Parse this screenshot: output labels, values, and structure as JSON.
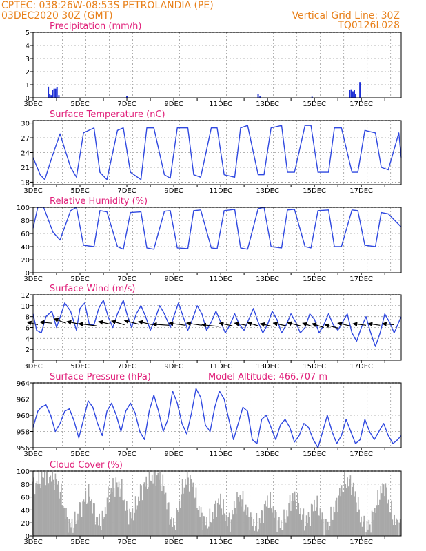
{
  "header": {
    "line1_left": "CPTEC:   038:26W-08:53S   PETROLANDIA (PE)",
    "line2_left": "03DEC2020 30Z (GMT)",
    "line1_right": "Vertical Grid Line: 30Z",
    "line2_right": "TQ0126L028"
  },
  "chart_data": [
    {
      "type": "bar",
      "title": "Precipitation (mm/h)",
      "ylim": [
        0,
        5
      ],
      "yticks": [
        0,
        1,
        2,
        3,
        4,
        5
      ],
      "xticks": [
        "3DEC",
        "5DEC",
        "7DEC",
        "9DEC",
        "11DEC",
        "13DEC",
        "15DEC",
        "17DEC"
      ],
      "xlim_days": [
        3,
        18.7
      ],
      "bar_color": "#1d2fd6",
      "bars": [
        {
          "x": 3.65,
          "y": 0.85
        },
        {
          "x": 3.71,
          "y": 0.3
        },
        {
          "x": 3.77,
          "y": 0.2
        },
        {
          "x": 3.83,
          "y": 0.6
        },
        {
          "x": 3.9,
          "y": 0.7
        },
        {
          "x": 3.96,
          "y": 0.7
        },
        {
          "x": 4.02,
          "y": 0.8
        },
        {
          "x": 4.1,
          "y": 0.2
        },
        {
          "x": 7.0,
          "y": 0.12
        },
        {
          "x": 12.6,
          "y": 0.28
        },
        {
          "x": 12.68,
          "y": 0.1
        },
        {
          "x": 14.9,
          "y": 0.08
        },
        {
          "x": 16.5,
          "y": 0.6
        },
        {
          "x": 16.57,
          "y": 0.65
        },
        {
          "x": 16.64,
          "y": 0.5
        },
        {
          "x": 16.7,
          "y": 0.6
        },
        {
          "x": 16.76,
          "y": 0.3
        },
        {
          "x": 16.94,
          "y": 1.2
        }
      ]
    },
    {
      "type": "line",
      "title": "Surface Temperature (nC)",
      "ylim": [
        17.5,
        30.5
      ],
      "yticks": [
        18,
        21,
        24,
        27,
        30
      ],
      "xticks": [
        "3DEC",
        "5DEC",
        "7DEC",
        "9DEC",
        "11DEC",
        "13DEC",
        "15DEC",
        "17DEC"
      ],
      "line_color": "#2f48e0",
      "series": [
        {
          "x": [
            3.0,
            3.3,
            3.5,
            3.8,
            4.15,
            4.6,
            4.85,
            5.15,
            5.6,
            5.85,
            6.15,
            6.6,
            6.85,
            7.15,
            7.6,
            7.85,
            8.15,
            8.6,
            8.85,
            9.15,
            9.6,
            9.85,
            10.15,
            10.6,
            10.85,
            11.15,
            11.6,
            11.85,
            12.15,
            12.6,
            12.85,
            13.15,
            13.6,
            13.85,
            14.15,
            14.6,
            14.85,
            15.15,
            15.6,
            15.85,
            16.15,
            16.6,
            16.85,
            17.15,
            17.6,
            17.85,
            18.15,
            18.6,
            18.7
          ],
          "y": [
            23.0,
            19.5,
            18.5,
            23.0,
            27.8,
            21.0,
            19.0,
            28.0,
            29.0,
            20.0,
            18.5,
            28.5,
            29.0,
            20.0,
            18.5,
            29.0,
            29.0,
            19.5,
            18.8,
            29.0,
            29.0,
            19.5,
            19.0,
            29.0,
            29.0,
            19.5,
            19.0,
            29.0,
            29.5,
            19.5,
            19.5,
            29.0,
            29.5,
            20.0,
            20.0,
            29.5,
            29.5,
            20.0,
            20.0,
            29.0,
            29.0,
            20.0,
            20.0,
            28.5,
            28.0,
            21.0,
            20.5,
            28.0,
            23.0
          ]
        }
      ]
    },
    {
      "type": "line",
      "title": "Relative Humidity (%)",
      "ylim": [
        0,
        100
      ],
      "yticks": [
        0,
        20,
        40,
        60,
        80,
        100
      ],
      "xticks": [
        "3DEC",
        "5DEC",
        "7DEC",
        "9DEC",
        "11DEC",
        "13DEC",
        "15DEC",
        "17DEC"
      ],
      "line_color": "#2f48e0",
      "series": [
        {
          "x": [
            3.0,
            3.2,
            3.45,
            3.85,
            4.15,
            4.6,
            4.85,
            5.15,
            5.6,
            5.85,
            6.15,
            6.6,
            6.85,
            7.15,
            7.6,
            7.85,
            8.15,
            8.6,
            8.85,
            9.15,
            9.6,
            9.85,
            10.15,
            10.6,
            10.85,
            11.15,
            11.6,
            11.85,
            12.15,
            12.6,
            12.85,
            13.15,
            13.6,
            13.85,
            14.15,
            14.6,
            14.85,
            15.15,
            15.6,
            15.85,
            16.15,
            16.6,
            16.85,
            17.15,
            17.6,
            17.85,
            18.15,
            18.7
          ],
          "y": [
            68,
            100,
            100,
            62,
            50,
            95,
            100,
            42,
            40,
            95,
            93,
            40,
            36,
            92,
            93,
            38,
            36,
            94,
            95,
            38,
            37,
            95,
            96,
            38,
            37,
            95,
            97,
            38,
            36,
            98,
            100,
            40,
            38,
            96,
            97,
            40,
            38,
            95,
            96,
            40,
            40,
            96,
            95,
            42,
            40,
            92,
            90,
            70
          ]
        }
      ]
    },
    {
      "type": "line",
      "title": "Surface Wind (m/s)",
      "ylim": [
        0,
        12
      ],
      "yticks": [
        2,
        4,
        6,
        8,
        10,
        12
      ],
      "xticks": [
        "3DEC",
        "5DEC",
        "7DEC",
        "9DEC",
        "11DEC",
        "13DEC",
        "15DEC",
        "17DEC"
      ],
      "line_color": "#2f48e0",
      "arrow_color": "#000000",
      "series": [
        {
          "x": [
            3.0,
            3.15,
            3.35,
            3.55,
            3.8,
            4.0,
            4.2,
            4.35,
            4.6,
            4.85,
            5.0,
            5.2,
            5.4,
            5.6,
            5.8,
            6.0,
            6.2,
            6.4,
            6.6,
            6.85,
            7.0,
            7.2,
            7.4,
            7.6,
            7.8,
            8.0,
            8.2,
            8.4,
            8.6,
            8.85,
            9.0,
            9.2,
            9.4,
            9.6,
            9.8,
            10.0,
            10.2,
            10.4,
            10.6,
            10.8,
            11.0,
            11.2,
            11.4,
            11.6,
            11.8,
            12.0,
            12.2,
            12.4,
            12.6,
            12.8,
            13.0,
            13.2,
            13.4,
            13.6,
            13.8,
            14.0,
            14.2,
            14.4,
            14.6,
            14.8,
            15.0,
            15.2,
            15.4,
            15.6,
            15.8,
            16.0,
            16.2,
            16.4,
            16.6,
            16.8,
            17.0,
            17.2,
            17.4,
            17.6,
            17.8,
            18.0,
            18.2,
            18.4,
            18.7
          ],
          "y": [
            8.5,
            5.5,
            5.0,
            8.0,
            9.0,
            6.0,
            8.5,
            10.5,
            9.0,
            5.5,
            9.5,
            10.5,
            6.5,
            6.5,
            9.5,
            11.0,
            8.0,
            6.0,
            8.5,
            11.0,
            8.5,
            6.0,
            8.5,
            10.0,
            8.0,
            5.5,
            7.5,
            10.0,
            8.5,
            6.0,
            8.0,
            10.5,
            8.0,
            5.5,
            7.5,
            10.0,
            8.5,
            5.5,
            7.0,
            9.0,
            7.0,
            5.0,
            6.5,
            8.5,
            6.5,
            5.5,
            7.5,
            9.5,
            7.0,
            5.0,
            6.5,
            9.0,
            7.5,
            5.0,
            6.5,
            8.5,
            7.0,
            5.0,
            6.0,
            8.5,
            7.5,
            5.0,
            6.5,
            8.5,
            6.5,
            5.5,
            7.0,
            8.5,
            5.0,
            3.5,
            6.0,
            8.0,
            5.0,
            2.5,
            5.0,
            8.5,
            7.0,
            5.0,
            8.0
          ]
        }
      ],
      "arrows": [
        {
          "x": 3.2,
          "y": 6.5,
          "dx": -0.45,
          "dy": 0.5
        },
        {
          "x": 3.8,
          "y": 6.8,
          "dx": -0.5,
          "dy": 0.2
        },
        {
          "x": 4.4,
          "y": 6.8,
          "dx": -0.5,
          "dy": 0.8
        },
        {
          "x": 5.0,
          "y": 6.6,
          "dx": -0.55,
          "dy": 0.5
        },
        {
          "x": 5.7,
          "y": 6.3,
          "dx": -0.75,
          "dy": 0.4
        },
        {
          "x": 6.3,
          "y": 6.6,
          "dx": -0.5,
          "dy": 0.5
        },
        {
          "x": 6.9,
          "y": 6.5,
          "dx": -0.55,
          "dy": 0.7
        },
        {
          "x": 7.5,
          "y": 6.6,
          "dx": -0.6,
          "dy": 0.7
        },
        {
          "x": 8.1,
          "y": 6.5,
          "dx": -0.6,
          "dy": 0.6
        },
        {
          "x": 8.8,
          "y": 6.4,
          "dx": -0.7,
          "dy": 0.2
        },
        {
          "x": 9.5,
          "y": 6.4,
          "dx": -0.7,
          "dy": 0.4
        },
        {
          "x": 10.2,
          "y": 6.4,
          "dx": -0.65,
          "dy": 0.4
        },
        {
          "x": 10.9,
          "y": 6.2,
          "dx": -0.7,
          "dy": 0.3
        },
        {
          "x": 11.5,
          "y": 6.3,
          "dx": -0.55,
          "dy": 0.5
        },
        {
          "x": 12.1,
          "y": 6.4,
          "dx": -0.5,
          "dy": 0.4
        },
        {
          "x": 12.6,
          "y": 6.3,
          "dx": -0.45,
          "dy": 0.6
        },
        {
          "x": 13.2,
          "y": 6.2,
          "dx": -0.5,
          "dy": 0.5
        },
        {
          "x": 13.8,
          "y": 6.3,
          "dx": -0.55,
          "dy": 0.5
        },
        {
          "x": 14.4,
          "y": 6.3,
          "dx": -0.55,
          "dy": 0.6
        },
        {
          "x": 14.9,
          "y": 6.2,
          "dx": -0.4,
          "dy": 0.6
        },
        {
          "x": 15.4,
          "y": 6.0,
          "dx": -0.5,
          "dy": 0.7
        },
        {
          "x": 16.0,
          "y": 5.9,
          "dx": -0.55,
          "dy": 0.6
        },
        {
          "x": 16.6,
          "y": 6.2,
          "dx": -0.6,
          "dy": 0.6
        },
        {
          "x": 17.2,
          "y": 6.4,
          "dx": -0.55,
          "dy": 0.3
        },
        {
          "x": 17.8,
          "y": 6.4,
          "dx": -0.5,
          "dy": 0.3
        },
        {
          "x": 18.4,
          "y": 6.5,
          "dx": -0.5,
          "dy": 0.2
        }
      ]
    },
    {
      "type": "line",
      "title": "Surface Pressure (hPa)",
      "subtitle": "Model Altitude: 466.707 m",
      "ylim": [
        956,
        964
      ],
      "yticks": [
        956,
        958,
        960,
        962,
        964
      ],
      "xticks": [
        "3DEC",
        "5DEC",
        "7DEC",
        "9DEC",
        "11DEC",
        "13DEC",
        "15DEC",
        "17DEC"
      ],
      "line_color": "#2f48e0",
      "series": [
        {
          "x": [
            3.0,
            3.2,
            3.35,
            3.55,
            3.75,
            3.95,
            4.15,
            4.35,
            4.55,
            4.75,
            4.95,
            5.15,
            5.35,
            5.55,
            5.75,
            5.95,
            6.15,
            6.35,
            6.55,
            6.75,
            6.95,
            7.15,
            7.35,
            7.55,
            7.75,
            7.95,
            8.15,
            8.35,
            8.55,
            8.75,
            8.95,
            9.15,
            9.35,
            9.55,
            9.75,
            9.95,
            10.15,
            10.35,
            10.55,
            10.75,
            10.95,
            11.15,
            11.35,
            11.55,
            11.75,
            11.95,
            12.15,
            12.35,
            12.55,
            12.75,
            12.95,
            13.15,
            13.35,
            13.55,
            13.75,
            13.95,
            14.15,
            14.35,
            14.55,
            14.75,
            14.95,
            15.15,
            15.35,
            15.55,
            15.75,
            15.95,
            16.15,
            16.35,
            16.55,
            16.75,
            16.95,
            17.15,
            17.35,
            17.55,
            17.75,
            17.95,
            18.15,
            18.35,
            18.55,
            18.7
          ],
          "y": [
            958.5,
            960.5,
            961.0,
            961.3,
            960.0,
            958.0,
            959.0,
            960.5,
            960.8,
            959.3,
            957.2,
            959.5,
            961.8,
            961.0,
            959.0,
            957.5,
            960.5,
            961.5,
            960.0,
            958.0,
            960.5,
            961.5,
            960.3,
            958.0,
            957.0,
            960.5,
            962.5,
            960.5,
            958.0,
            959.5,
            963.0,
            961.5,
            959.0,
            957.7,
            960.2,
            963.3,
            962.2,
            958.8,
            958.0,
            961.0,
            963.0,
            962.0,
            959.5,
            957.0,
            959.0,
            961.0,
            960.5,
            957.0,
            956.5,
            959.5,
            960.0,
            958.5,
            957.0,
            958.8,
            959.5,
            958.5,
            956.7,
            957.5,
            959.0,
            958.5,
            957.0,
            956.0,
            958.0,
            960.0,
            958.0,
            956.5,
            957.5,
            959.5,
            958.0,
            956.5,
            957.0,
            959.5,
            958.0,
            957.0,
            958.0,
            959.0,
            957.5,
            956.5,
            957.0,
            957.5
          ]
        }
      ]
    },
    {
      "type": "bar",
      "title": "Cloud Cover (%)",
      "ylim": [
        0,
        100
      ],
      "yticks": [
        0,
        20,
        40,
        60,
        80,
        100
      ],
      "xticks": [
        "3DEC",
        "5DEC",
        "7DEC",
        "9DEC",
        "11DEC",
        "13DEC",
        "15DEC",
        "17DEC"
      ],
      "bar_color": "#a8a8a8",
      "envelope": {
        "x": [
          3.0,
          3.2,
          3.4,
          3.6,
          3.8,
          4.0,
          4.2,
          4.4,
          4.6,
          4.8,
          5.0,
          5.2,
          5.4,
          5.6,
          5.8,
          6.0,
          6.2,
          6.4,
          6.6,
          6.8,
          7.0,
          7.2,
          7.4,
          7.6,
          7.8,
          8.0,
          8.2,
          8.4,
          8.6,
          8.8,
          9.0,
          9.2,
          9.4,
          9.6,
          9.8,
          10.0,
          10.2,
          10.4,
          10.6,
          10.8,
          11.0,
          11.2,
          11.4,
          11.6,
          11.8,
          12.0,
          12.2,
          12.4,
          12.6,
          12.8,
          13.0,
          13.2,
          13.4,
          13.6,
          13.8,
          14.0,
          14.2,
          14.4,
          14.6,
          14.8,
          15.0,
          15.2,
          15.4,
          15.6,
          15.8,
          16.0,
          16.2,
          16.4,
          16.6,
          16.8,
          17.0,
          17.2,
          17.4,
          17.6,
          17.8,
          18.0,
          18.2,
          18.4,
          18.6
        ],
        "y": [
          75,
          85,
          90,
          95,
          90,
          85,
          65,
          30,
          15,
          20,
          40,
          55,
          65,
          40,
          20,
          25,
          60,
          75,
          80,
          70,
          40,
          30,
          45,
          70,
          80,
          88,
          95,
          90,
          75,
          35,
          15,
          40,
          75,
          90,
          80,
          50,
          30,
          20,
          25,
          45,
          55,
          30,
          20,
          45,
          60,
          50,
          30,
          20,
          15,
          35,
          55,
          45,
          25,
          15,
          30,
          55,
          60,
          40,
          20,
          30,
          50,
          40,
          20,
          15,
          35,
          55,
          75,
          85,
          80,
          55,
          25,
          10,
          20,
          40,
          65,
          80,
          45,
          25,
          15
        ]
      }
    }
  ]
}
